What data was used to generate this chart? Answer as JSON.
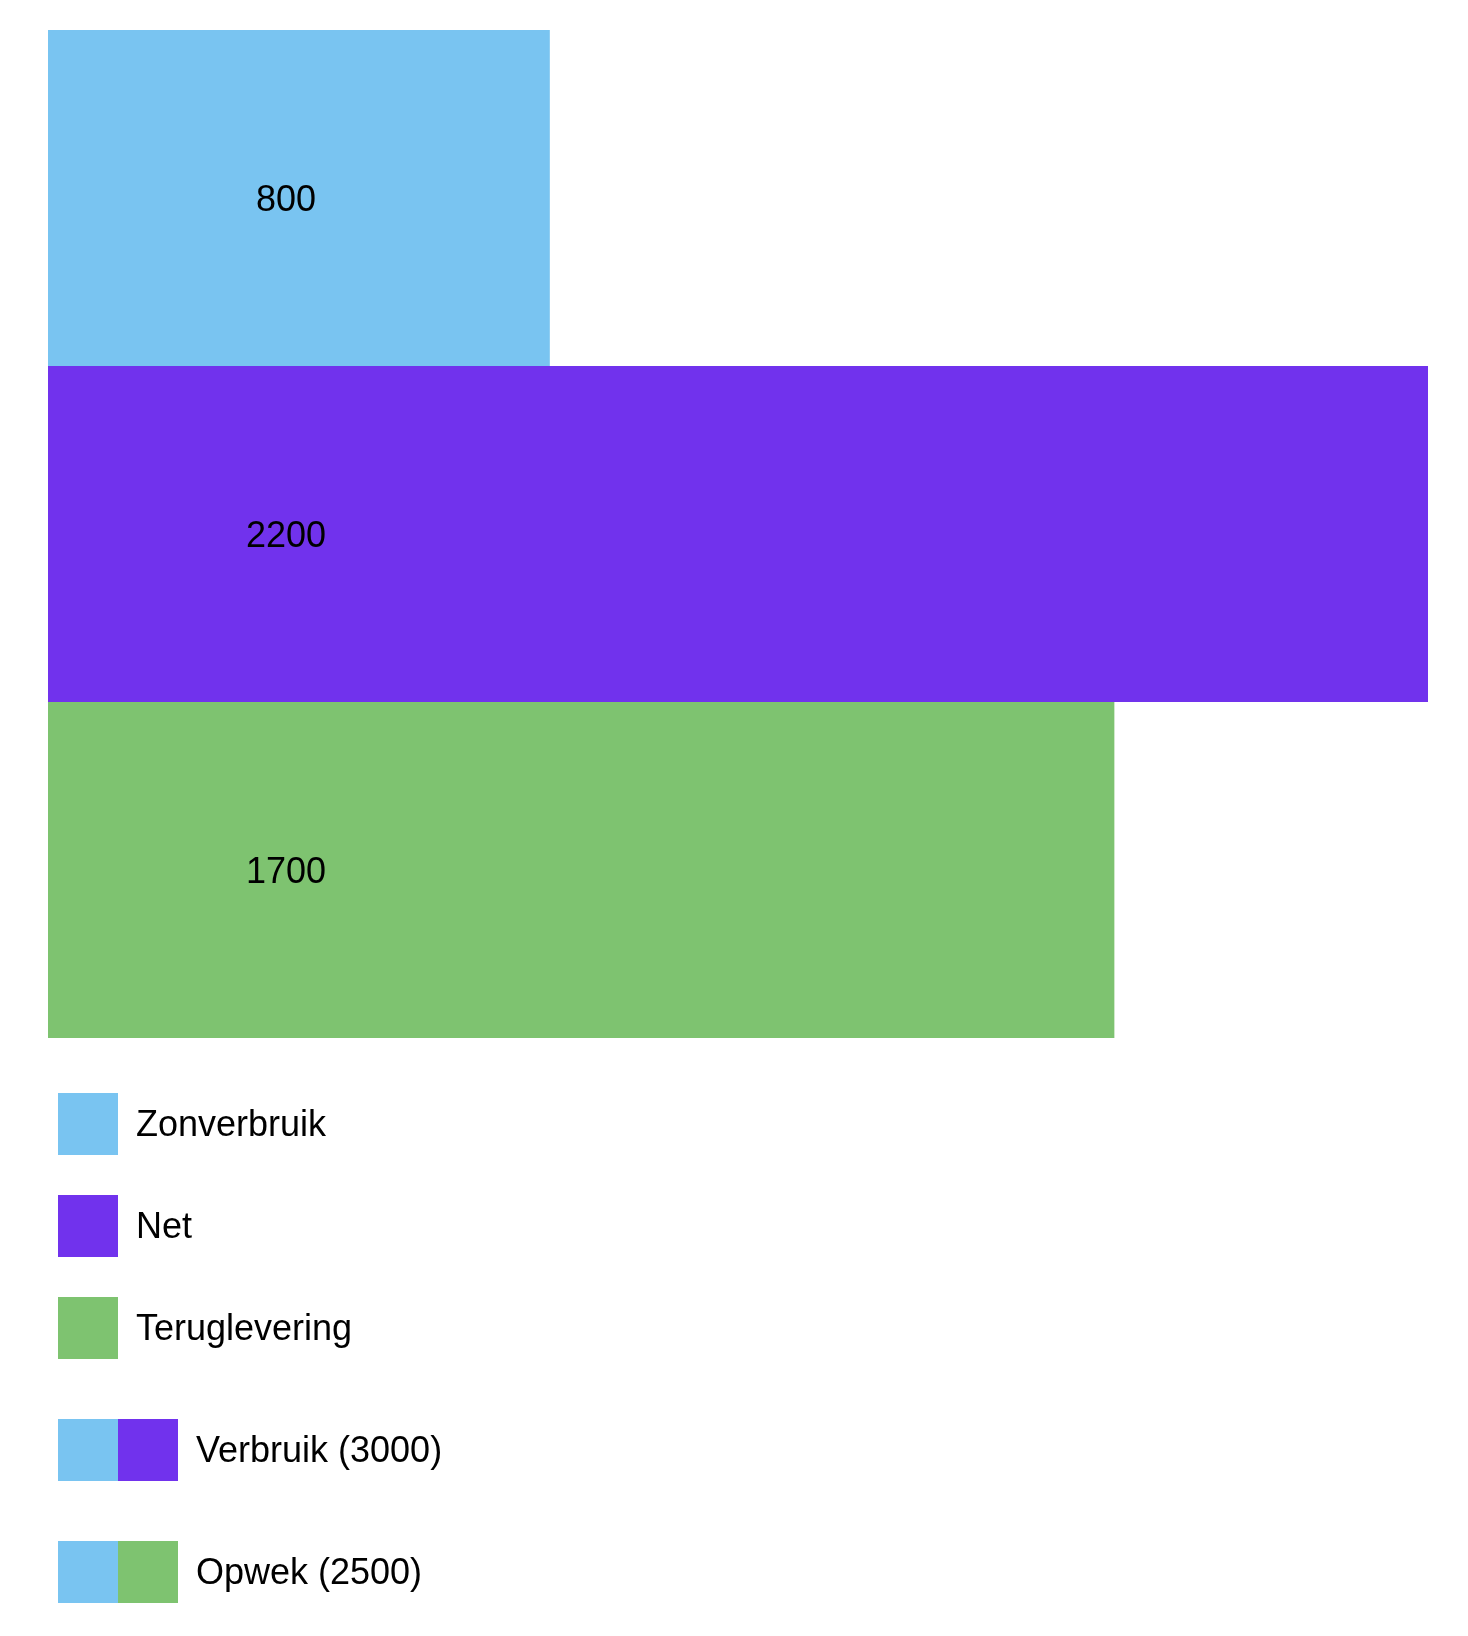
{
  "chart_data": {
    "type": "bar",
    "orientation": "horizontal",
    "stacked": true,
    "data_labels": true,
    "legend": "bottom",
    "categories": [
      null,
      null,
      null
    ],
    "series": [
      {
        "name": "Zonverbruik",
        "color": "#79c4f1",
        "values": [
          800,
          null,
          null
        ]
      },
      {
        "name": "Net",
        "color": "#7132ed",
        "values": [
          null,
          2200,
          null
        ]
      },
      {
        "name": "Teruglevering",
        "color": "#7ec370",
        "values": [
          null,
          null,
          1700
        ]
      }
    ],
    "annotations": [
      "Verbruik (3000)",
      "Opwek (2500)"
    ]
  }
}
